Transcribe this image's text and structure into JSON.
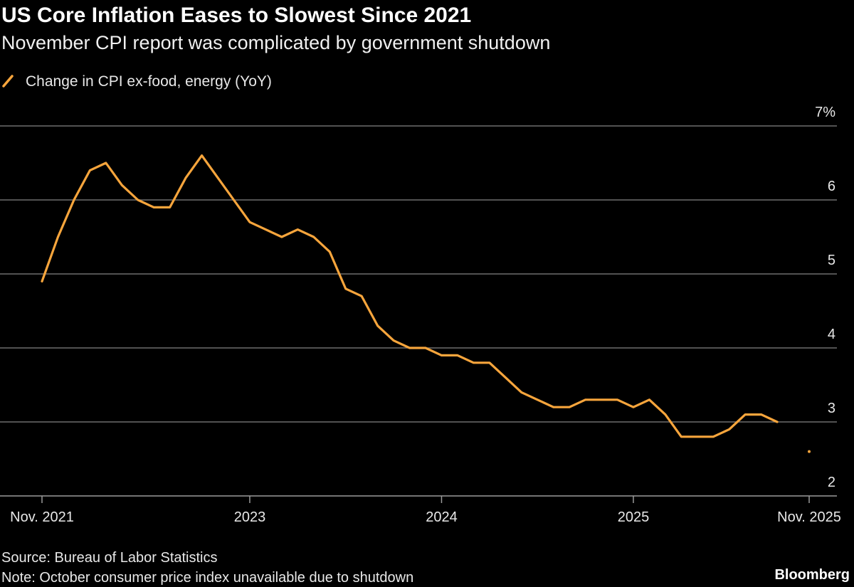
{
  "chart_data": {
    "type": "line",
    "title": "US Core Inflation Eases to Slowest Since 2021",
    "subtitle": "November CPI report was complicated by government shutdown",
    "categories": [
      "Nov. 2021",
      null,
      null,
      null,
      null,
      null,
      null,
      null,
      null,
      null,
      null,
      null,
      null,
      "2023",
      null,
      null,
      null,
      null,
      null,
      null,
      null,
      null,
      null,
      null,
      null,
      "2024",
      null,
      null,
      null,
      null,
      null,
      null,
      null,
      null,
      null,
      null,
      null,
      "2025",
      null,
      null,
      null,
      null,
      null,
      null,
      null,
      null,
      null,
      null,
      "Nov. 2025"
    ],
    "series": [
      {
        "name": "Change in CPI ex-food, energy (YoY)",
        "color": "#f7a53c",
        "values": [
          4.9,
          5.5,
          6.0,
          6.4,
          6.5,
          6.2,
          6.0,
          5.9,
          5.9,
          6.3,
          6.6,
          6.3,
          6.0,
          5.7,
          5.6,
          5.5,
          5.6,
          5.5,
          5.3,
          4.8,
          4.7,
          4.3,
          4.1,
          4.0,
          4.0,
          3.9,
          3.9,
          3.8,
          3.8,
          3.6,
          3.4,
          3.3,
          3.2,
          3.2,
          3.3,
          3.3,
          3.3,
          3.2,
          3.3,
          3.1,
          2.8,
          2.8,
          2.8,
          2.9,
          3.1,
          3.1,
          3.0,
          null,
          2.6
        ]
      }
    ],
    "ylim": [
      2,
      7
    ],
    "yticks": [
      2,
      3,
      4,
      5,
      6,
      {
        "value": 7,
        "label": "7%"
      }
    ],
    "grid": true,
    "source": "Source: Bureau of Labor Statistics",
    "note": "Note: October consumer price index unavailable due to shutdown",
    "brand": "Bloomberg"
  }
}
